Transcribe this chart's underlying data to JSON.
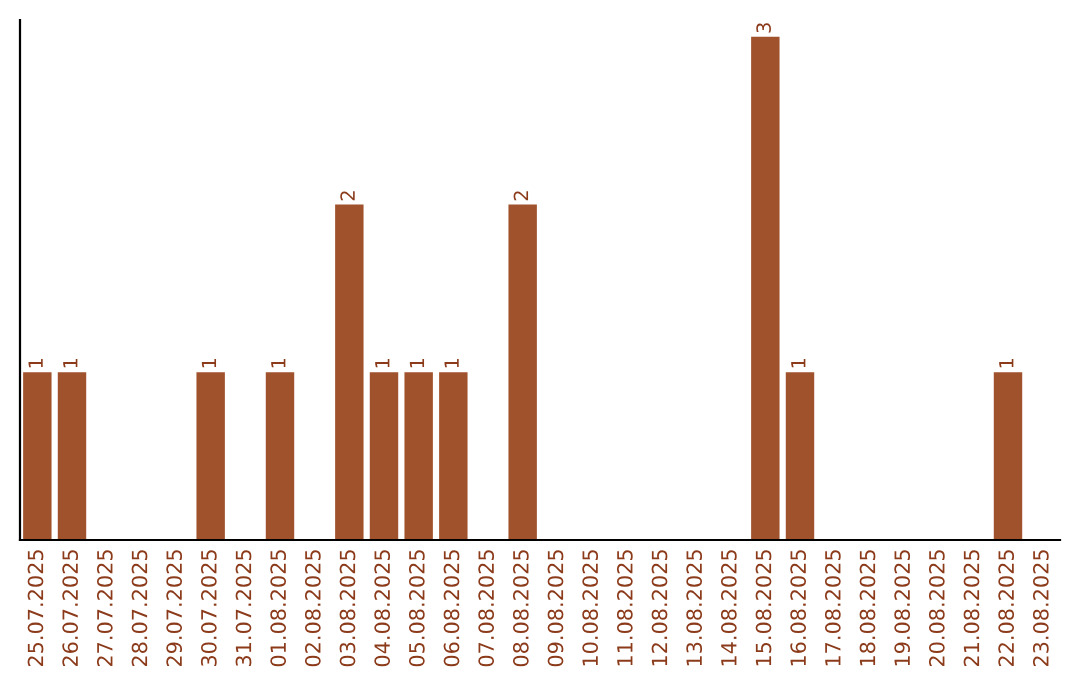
{
  "chart_data": {
    "type": "bar",
    "categories": [
      "25.07.2025",
      "26.07.2025",
      "27.07.2025",
      "28.07.2025",
      "29.07.2025",
      "30.07.2025",
      "31.07.2025",
      "01.08.2025",
      "02.08.2025",
      "03.08.2025",
      "04.08.2025",
      "05.08.2025",
      "06.08.2025",
      "07.08.2025",
      "08.08.2025",
      "09.08.2025",
      "10.08.2025",
      "11.08.2025",
      "12.08.2025",
      "13.08.2025",
      "14.08.2025",
      "15.08.2025",
      "16.08.2025",
      "17.08.2025",
      "18.08.2025",
      "19.08.2025",
      "20.08.2025",
      "21.08.2025",
      "22.08.2025",
      "23.08.2025"
    ],
    "values": [
      1,
      1,
      0,
      0,
      0,
      1,
      0,
      1,
      0,
      2,
      1,
      1,
      1,
      0,
      2,
      0,
      0,
      0,
      0,
      0,
      0,
      3,
      1,
      0,
      0,
      0,
      0,
      0,
      1,
      0
    ],
    "value_labels": [
      "1",
      "1",
      null,
      null,
      null,
      "1",
      null,
      "1",
      null,
      "2",
      "1",
      "1",
      "1",
      null,
      "2",
      null,
      null,
      null,
      null,
      null,
      null,
      "3",
      "1",
      null,
      null,
      null,
      null,
      null,
      "1",
      null
    ],
    "color": "#a0522d",
    "ylim": [
      0,
      3.1
    ],
    "tick_labels": "x",
    "grid": false,
    "legend": false
  }
}
